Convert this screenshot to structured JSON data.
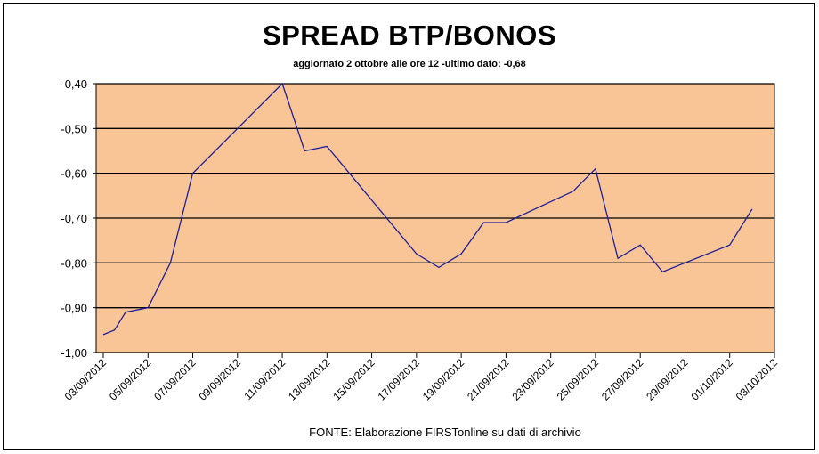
{
  "chart_data": {
    "type": "line",
    "title": "SPREAD BTP/BONOS",
    "subtitle": "aggiornato 2 ottobre alle ore 12 -ultimo dato: -0,68",
    "source": "FONTE: Elaborazione FIRSTonline su dati di archivio",
    "ylim": [
      -1.0,
      -0.4
    ],
    "yticks": [
      -0.4,
      -0.5,
      -0.6,
      -0.7,
      -0.8,
      -0.9,
      -1.0
    ],
    "ytick_labels": [
      "-0,40",
      "-0,50",
      "-0,60",
      "-0,70",
      "-0,80",
      "-0,90",
      "-1,00"
    ],
    "xtick_labels": [
      "03/09/2012",
      "05/09/2012",
      "07/09/2012",
      "09/09/2012",
      "11/09/2012",
      "13/09/2012",
      "15/09/2012",
      "17/09/2012",
      "19/09/2012",
      "21/09/2012",
      "23/09/2012",
      "25/09/2012",
      "27/09/2012",
      "29/09/2012",
      "01/10/2012",
      "03/10/2012"
    ],
    "x": [
      "03/09/2012",
      "03/09/2012 12:00",
      "04/09/2012",
      "05/09/2012",
      "06/09/2012",
      "07/09/2012",
      "11/09/2012",
      "12/09/2012",
      "13/09/2012",
      "14/09/2012",
      "17/09/2012",
      "18/09/2012",
      "19/09/2012",
      "20/09/2012",
      "21/09/2012",
      "24/09/2012",
      "25/09/2012",
      "26/09/2012",
      "27/09/2012",
      "28/09/2012",
      "01/10/2012",
      "02/10/2012"
    ],
    "values": [
      -0.96,
      -0.95,
      -0.91,
      -0.9,
      -0.8,
      -0.6,
      -0.4,
      -0.55,
      -0.54,
      -0.6,
      -0.78,
      -0.81,
      -0.78,
      -0.71,
      -0.71,
      -0.64,
      -0.59,
      -0.79,
      -0.76,
      -0.82,
      -0.76,
      -0.68
    ],
    "grid": true,
    "colors": {
      "plot_bg": "#F9C596",
      "line": "#1F1F99",
      "grid": "#000000"
    }
  }
}
